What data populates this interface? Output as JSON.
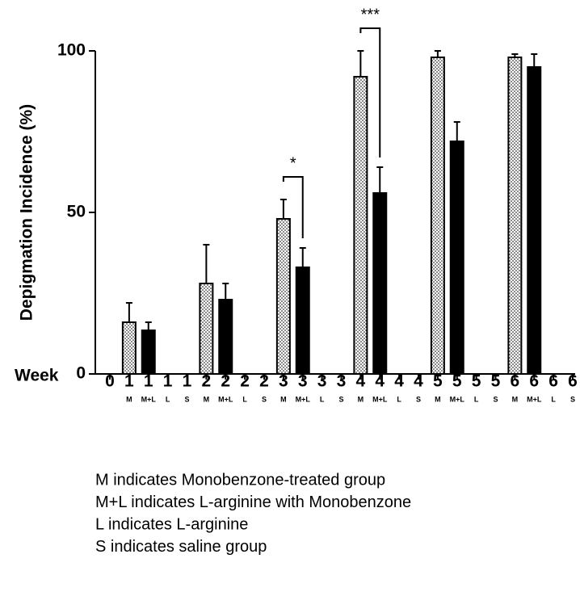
{
  "chart_data": {
    "type": "bar",
    "ylabel": "Depigmation Incidence (%)",
    "xlabel": "Week",
    "categories": [
      "0",
      "1",
      "1",
      "1",
      "1",
      "2",
      "2",
      "2",
      "2",
      "3",
      "3",
      "3",
      "3",
      "4",
      "4",
      "4",
      "4",
      "5",
      "5",
      "5",
      "5",
      "6",
      "6",
      "6",
      "6"
    ],
    "sublabels": [
      null,
      "M",
      "M+L",
      "L",
      "S",
      "M",
      "M+L",
      "L",
      "S",
      "M",
      "M+L",
      "L",
      "S",
      "M",
      "M+L",
      "L",
      "S",
      "M",
      "M+L",
      "L",
      "S",
      "M",
      "M+L",
      "L",
      "S"
    ],
    "series": [
      {
        "fill": "dots",
        "values": [
          null,
          16,
          null,
          null,
          null,
          28,
          null,
          null,
          null,
          48,
          null,
          null,
          null,
          92,
          null,
          null,
          null,
          98,
          null,
          null,
          null,
          98,
          null,
          null,
          null
        ],
        "errors": [
          null,
          6,
          null,
          null,
          null,
          12,
          null,
          null,
          null,
          6,
          null,
          null,
          null,
          8,
          null,
          null,
          null,
          2,
          null,
          null,
          null,
          1,
          null,
          null,
          null
        ]
      },
      {
        "color": "#000000",
        "values": [
          null,
          null,
          13.5,
          null,
          null,
          null,
          23,
          null,
          null,
          null,
          33,
          null,
          null,
          null,
          56,
          null,
          null,
          null,
          72,
          null,
          null,
          null,
          95,
          null,
          null
        ],
        "errors": [
          null,
          null,
          2.5,
          null,
          null,
          null,
          5,
          null,
          null,
          null,
          6,
          null,
          null,
          null,
          8,
          null,
          null,
          null,
          6,
          null,
          null,
          null,
          4,
          null,
          null
        ]
      }
    ],
    "annotations": [
      {
        "text": "*",
        "from": 9,
        "to": 10
      },
      {
        "text": "***",
        "from": 13,
        "to": 14
      }
    ],
    "ylim": [
      0,
      100
    ],
    "yticks": [
      0,
      50,
      100
    ],
    "notes": [
      "M indicates Monobenzone-treated group",
      "M+L indicates L-arginine with Monobenzone",
      "L indicates L-arginine",
      "S indicates saline group"
    ]
  }
}
